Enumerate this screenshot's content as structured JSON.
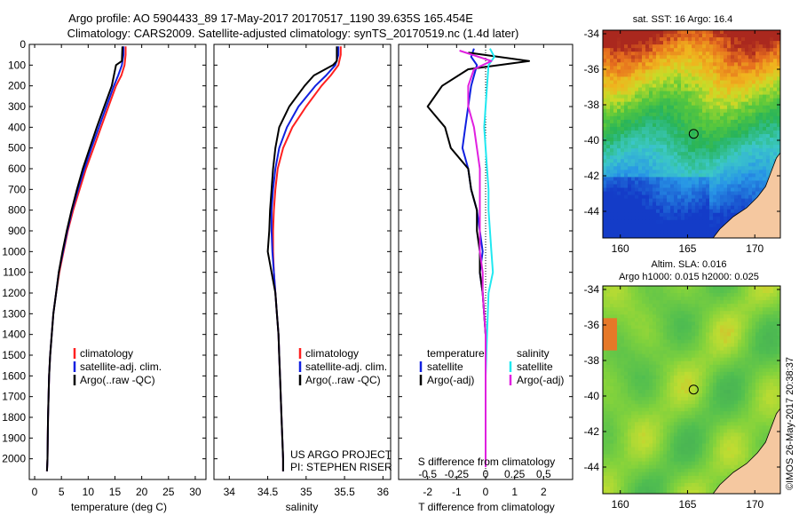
{
  "header": {
    "line1": "Argo profile: AO 5904433_89 17-May-2017 20170517_1190 39.635S 165.454E",
    "line2": "Climatology: CARS2009. Satellite-adjusted climatology: synTS_20170519.nc (1.4d later)"
  },
  "colors": {
    "climatology": "#ff2020",
    "satellite": "#1020e0",
    "argo": "#000000",
    "sal_satellite": "#20e8f0",
    "sal_argo": "#e020e0",
    "land": "#f5c8a0"
  },
  "chart_data": [
    {
      "name": "temperature-profile",
      "type": "line",
      "xlabel": "temperature (deg C)",
      "ylim": [
        2100,
        0
      ],
      "xlim": [
        -1,
        32
      ],
      "xticks": [
        0,
        5,
        10,
        15,
        20,
        25,
        30
      ],
      "xtick_labels": [
        "0",
        "5",
        "10",
        "15",
        "20",
        "25",
        "30"
      ],
      "yticks": [
        0,
        100,
        200,
        300,
        400,
        500,
        600,
        700,
        800,
        900,
        1000,
        1100,
        1200,
        1300,
        1400,
        1500,
        1600,
        1700,
        1800,
        1900,
        2000
      ],
      "ytick_labels": [
        "0",
        "100",
        "200",
        "300",
        "400",
        "500",
        "600",
        "700",
        "800",
        "900",
        "1000",
        "1100",
        "1200",
        "1300",
        "1400",
        "1500",
        "1600",
        "1700",
        "1800",
        "1900",
        "2000"
      ],
      "legend": [
        "climatology",
        "satellite-adj. clim.",
        "Argo(..raw -QC)"
      ],
      "legend_position": "bottom-right",
      "series": [
        {
          "key": "climatology",
          "color": "#ff2020",
          "x": [
            17.0,
            17.0,
            16.8,
            16.2,
            15.2,
            13.8,
            12.4,
            11.0,
            9.6,
            8.4,
            7.2,
            6.2,
            5.4,
            4.6,
            4.0,
            3.5,
            3.2,
            2.9,
            2.7,
            2.5,
            2.4,
            2.3
          ],
          "y": [
            10,
            50,
            100,
            150,
            200,
            300,
            400,
            500,
            600,
            700,
            800,
            900,
            1000,
            1100,
            1200,
            1300,
            1400,
            1500,
            1600,
            1800,
            2000,
            2060
          ]
        },
        {
          "key": "satellite",
          "color": "#1020e0",
          "x": [
            16.6,
            16.6,
            16.3,
            15.6,
            14.8,
            13.4,
            12.0,
            10.6,
            9.3,
            8.1,
            7.0,
            6.1,
            5.3,
            4.5,
            4.0,
            3.5,
            3.2,
            2.9,
            2.7,
            2.5,
            2.4,
            2.3
          ],
          "y": [
            10,
            50,
            100,
            150,
            200,
            300,
            400,
            500,
            600,
            700,
            800,
            900,
            1000,
            1100,
            1200,
            1300,
            1400,
            1500,
            1600,
            1800,
            2000,
            2060
          ]
        },
        {
          "key": "argo",
          "color": "#000000",
          "x": [
            16.4,
            16.3,
            15.2,
            14.8,
            14.4,
            13.0,
            11.6,
            10.3,
            9.0,
            7.9,
            6.9,
            6.0,
            5.2,
            4.5,
            4.0,
            3.5,
            3.2,
            2.9,
            2.7,
            2.5,
            2.4,
            2.3
          ],
          "y": [
            10,
            80,
            100,
            150,
            200,
            300,
            400,
            500,
            600,
            700,
            800,
            900,
            1000,
            1100,
            1200,
            1300,
            1400,
            1500,
            1600,
            1800,
            2000,
            2060
          ]
        }
      ]
    },
    {
      "name": "salinity-profile",
      "type": "line",
      "xlabel": "salinity",
      "ylim": [
        2100,
        0
      ],
      "xlim": [
        33.8,
        36.1
      ],
      "xticks": [
        34,
        34.5,
        35,
        35.5,
        36
      ],
      "xtick_labels": [
        "34",
        "34.5",
        "35",
        "35.5",
        "36"
      ],
      "legend": [
        "climatology",
        "satellite-adj. clim.",
        "Argo(..raw -QC)"
      ],
      "legend_position": "bottom-right",
      "annotation": [
        "US ARGO PROJECT",
        "PI: STEPHEN RISER"
      ],
      "series": [
        {
          "key": "climatology",
          "color": "#ff2020",
          "x": [
            35.45,
            35.45,
            35.42,
            35.32,
            35.2,
            35.0,
            34.82,
            34.7,
            34.63,
            34.6,
            34.58,
            34.57,
            34.57,
            34.58,
            34.6,
            34.62,
            34.64,
            34.65,
            34.66,
            34.68,
            34.7,
            34.7
          ],
          "y": [
            10,
            50,
            100,
            150,
            200,
            300,
            400,
            500,
            600,
            700,
            800,
            900,
            1000,
            1100,
            1200,
            1300,
            1400,
            1500,
            1600,
            1800,
            2000,
            2060
          ]
        },
        {
          "key": "satellite",
          "color": "#1020e0",
          "x": [
            35.42,
            35.42,
            35.38,
            35.26,
            35.12,
            34.9,
            34.75,
            34.65,
            34.6,
            34.57,
            34.55,
            34.55,
            34.56,
            34.58,
            34.6,
            34.62,
            34.64,
            34.65,
            34.66,
            34.68,
            34.7,
            34.7
          ],
          "y": [
            10,
            50,
            100,
            150,
            200,
            300,
            400,
            500,
            600,
            700,
            800,
            900,
            1000,
            1100,
            1200,
            1300,
            1400,
            1500,
            1600,
            1800,
            2000,
            2060
          ]
        },
        {
          "key": "argo",
          "color": "#000000",
          "x": [
            35.4,
            35.4,
            35.35,
            35.1,
            34.98,
            34.78,
            34.65,
            34.6,
            34.57,
            34.55,
            34.53,
            34.52,
            34.5,
            34.55,
            34.6,
            34.62,
            34.64,
            34.65,
            34.66,
            34.68,
            34.7,
            34.7
          ],
          "y": [
            10,
            80,
            100,
            150,
            200,
            300,
            400,
            500,
            600,
            700,
            800,
            900,
            1000,
            1100,
            1200,
            1300,
            1400,
            1500,
            1600,
            1800,
            2000,
            2060
          ]
        }
      ]
    },
    {
      "name": "difference-profile",
      "type": "line",
      "xlabel": "T difference from climatology",
      "toplabel": "S difference from climatology",
      "ylim": [
        2100,
        0
      ],
      "xlim": [
        -3,
        3
      ],
      "xticks": [
        -2,
        -1,
        0,
        1,
        2
      ],
      "xtick_labels": [
        "-2",
        "-1",
        "0",
        "1",
        "2"
      ],
      "s_xticks": [
        -0.5,
        -0.25,
        0,
        0.25,
        0.5
      ],
      "s_xtick_labels": [
        "-0.5",
        "-0.25",
        "0",
        "0.25",
        "0.5"
      ],
      "legend_t_title": "temperature",
      "legend_s_title": "salinity",
      "legend_t": [
        "satellite",
        "Argo(-adj)"
      ],
      "legend_s": [
        "satellite",
        "Argo(-adj)"
      ],
      "series": [
        {
          "key": "satellite",
          "color": "#1020e0",
          "x": [
            -0.4,
            -0.5,
            -0.3,
            -0.5,
            -0.6,
            -0.7,
            -0.8,
            -0.6,
            -0.5,
            -0.3,
            -0.2,
            -0.1,
            -0.2,
            -0.1,
            0,
            0,
            0
          ],
          "y": [
            20,
            60,
            100,
            200,
            300,
            400,
            500,
            600,
            700,
            800,
            900,
            1000,
            1100,
            1200,
            1400,
            1600,
            2040
          ]
        },
        {
          "key": "argo",
          "color": "#000000",
          "x": [
            -0.6,
            1.5,
            -0.6,
            -1.5,
            -2.0,
            -1.4,
            -1.2,
            -0.6,
            -0.5,
            -0.3,
            -0.3,
            -0.2,
            -0.2,
            -0.1,
            0,
            0,
            0
          ],
          "y": [
            40,
            80,
            120,
            200,
            300,
            400,
            500,
            600,
            700,
            800,
            900,
            1000,
            1100,
            1200,
            1400,
            1600,
            2040
          ]
        },
        {
          "key": "sal_satellite",
          "color": "#20e8f0",
          "x": [
            0.15,
            0.3,
            0.1,
            0.05,
            0.0,
            -0.05,
            0.0,
            0.05,
            0.1,
            0.1,
            0.15,
            0.2,
            0.25,
            0.1,
            0.05,
            0.0,
            0.0
          ],
          "y": [
            20,
            60,
            100,
            200,
            300,
            400,
            500,
            600,
            700,
            800,
            900,
            1000,
            1100,
            1200,
            1400,
            1600,
            2040
          ]
        },
        {
          "key": "sal_argo",
          "color": "#e020e0",
          "x": [
            -0.9,
            0.2,
            -0.4,
            -0.6,
            -0.6,
            -0.4,
            -0.3,
            -0.2,
            -0.2,
            -0.2,
            -0.2,
            -0.2,
            -0.1,
            -0.1,
            0,
            0,
            0
          ],
          "y": [
            30,
            80,
            120,
            200,
            300,
            400,
            500,
            600,
            700,
            800,
            900,
            1000,
            1100,
            1200,
            1400,
            1600,
            2040
          ]
        }
      ]
    },
    {
      "name": "sst-map",
      "type": "heatmap",
      "title": "sat. SST: 16 Argo: 16.4",
      "xlim": [
        158.7,
        171.9
      ],
      "ylim": [
        -45.5,
        -33.8
      ],
      "xticks": [
        160,
        165,
        170
      ],
      "xtick_labels": [
        "160",
        "165",
        "170"
      ],
      "yticks": [
        -34,
        -36,
        -38,
        -40,
        -42,
        -44
      ],
      "ytick_labels": [
        "-34",
        "-36",
        "-38",
        "-40",
        "-42",
        "-44"
      ],
      "marker": {
        "lon": 165.454,
        "lat": -39.635
      }
    },
    {
      "name": "sla-map",
      "type": "heatmap",
      "title_line1": "Altim. SLA: 0.016",
      "title_line2": "Argo h1000: 0.015 h2000: 0.025",
      "xlim": [
        158.7,
        171.9
      ],
      "ylim": [
        -45.5,
        -33.8
      ],
      "xticks": [
        160,
        165,
        170
      ],
      "xtick_labels": [
        "160",
        "165",
        "170"
      ],
      "yticks": [
        -34,
        -36,
        -38,
        -40,
        -42,
        -44
      ],
      "ytick_labels": [
        "-34",
        "-36",
        "-38",
        "-40",
        "-42",
        "-44"
      ],
      "marker": {
        "lon": 165.454,
        "lat": -39.635
      }
    }
  ],
  "footer": {
    "credit": "©IMOS 26-May-2017 20:38:37"
  }
}
